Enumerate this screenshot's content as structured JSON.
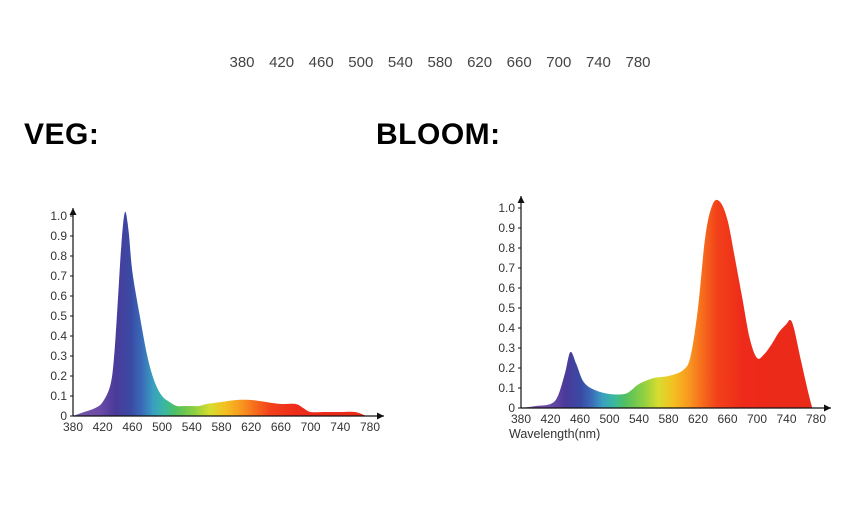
{
  "top_scale": {
    "labels": [
      "380",
      "420",
      "460",
      "500",
      "540",
      "580",
      "620",
      "660",
      "700",
      "740",
      "780"
    ]
  },
  "chart_data": [
    {
      "type": "area",
      "title": "VEG",
      "title_suffix": ":",
      "xlabel": "",
      "ylabel": "",
      "xlim": [
        380,
        780
      ],
      "ylim": [
        0,
        1.0
      ],
      "x_ticks": [
        "380",
        "420",
        "460",
        "500",
        "540",
        "580",
        "620",
        "660",
        "700",
        "740",
        "780"
      ],
      "y_ticks": [
        "0",
        "0.1",
        "0.2",
        "0.3",
        "0.4",
        "0.5",
        "0.6",
        "0.7",
        "0.8",
        "0.9",
        "1.0"
      ],
      "fill": "spectrum",
      "x": [
        380,
        395,
        410,
        420,
        430,
        435,
        440,
        445,
        450,
        455,
        460,
        470,
        480,
        490,
        500,
        510,
        520,
        530,
        540,
        550,
        560,
        580,
        600,
        620,
        640,
        660,
        680,
        690,
        700,
        720,
        740,
        760,
        775
      ],
      "y": [
        0.0,
        0.02,
        0.04,
        0.07,
        0.15,
        0.28,
        0.55,
        0.85,
        1.02,
        0.92,
        0.72,
        0.5,
        0.3,
        0.17,
        0.1,
        0.07,
        0.05,
        0.05,
        0.05,
        0.05,
        0.06,
        0.07,
        0.08,
        0.08,
        0.07,
        0.06,
        0.06,
        0.04,
        0.02,
        0.02,
        0.02,
        0.02,
        0.0
      ]
    },
    {
      "type": "area",
      "title": "BLOOM",
      "title_suffix": ":",
      "xlabel": "Wavelength(nm)",
      "ylabel": "",
      "xlim": [
        380,
        780
      ],
      "ylim": [
        0,
        1.0
      ],
      "x_ticks": [
        "380",
        "420",
        "460",
        "500",
        "540",
        "580",
        "620",
        "660",
        "700",
        "740",
        "780"
      ],
      "y_ticks": [
        "0",
        "0.1",
        "0.2",
        "0.3",
        "0.4",
        "0.5",
        "0.6",
        "0.7",
        "0.8",
        "0.9",
        "1.0"
      ],
      "fill": "spectrum",
      "x": [
        380,
        400,
        420,
        430,
        440,
        447,
        455,
        465,
        480,
        500,
        520,
        530,
        540,
        560,
        580,
        600,
        610,
        620,
        630,
        640,
        650,
        660,
        670,
        680,
        690,
        700,
        710,
        720,
        730,
        740,
        745,
        750,
        760,
        770,
        775
      ],
      "y": [
        0.0,
        0.01,
        0.02,
        0.06,
        0.18,
        0.28,
        0.22,
        0.13,
        0.09,
        0.07,
        0.07,
        0.09,
        0.12,
        0.15,
        0.16,
        0.19,
        0.26,
        0.5,
        0.86,
        1.02,
        1.03,
        0.94,
        0.75,
        0.55,
        0.35,
        0.25,
        0.27,
        0.32,
        0.38,
        0.42,
        0.44,
        0.4,
        0.23,
        0.07,
        0.0
      ]
    }
  ]
}
